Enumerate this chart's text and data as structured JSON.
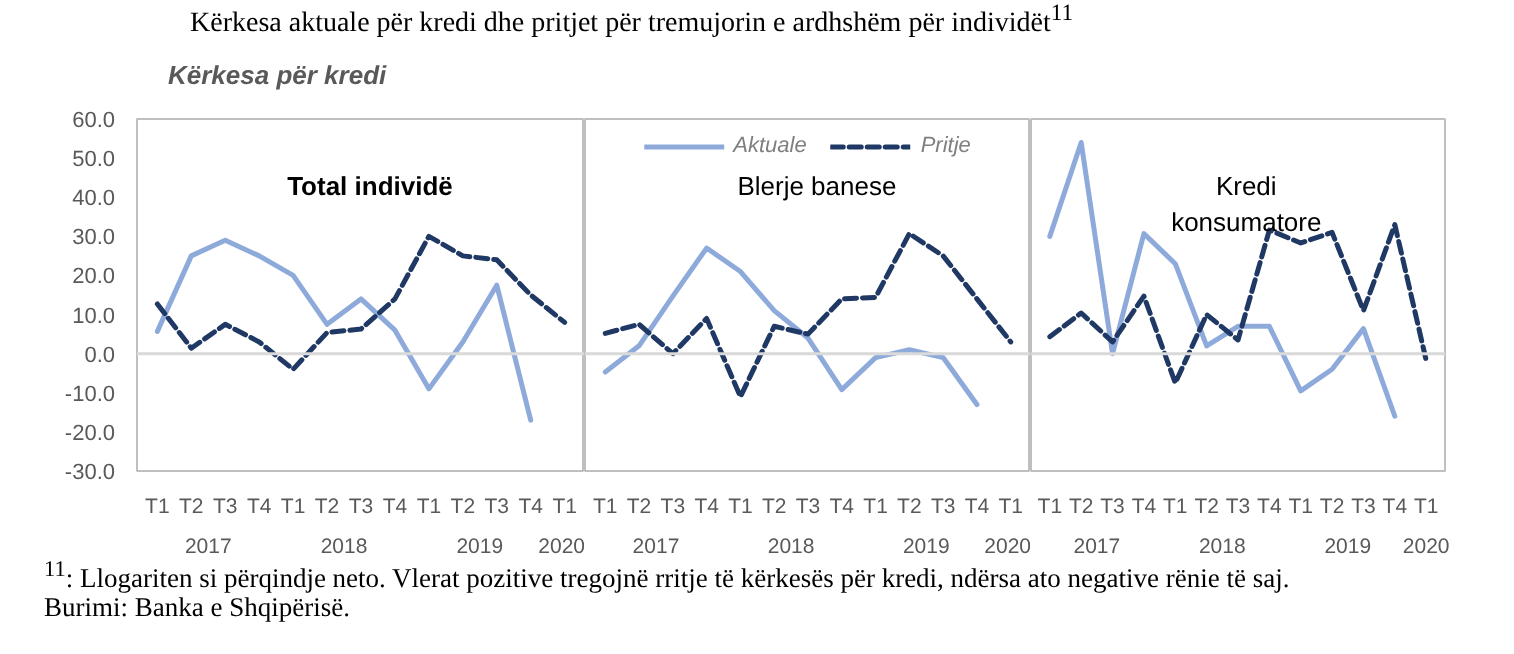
{
  "chart_data": [
    {
      "type": "line",
      "title": "Total individë",
      "subtitle": "Kërkesa për kredi",
      "annotations": [
        "2017",
        "2018",
        "2019",
        "2020",
        "Kërkesa aktuale për kredi dhe pritjet për tremujorin e ardhshëm për individët$^{11}$",
        "$^{11}$: Llogariten si përqindje neto. Vlerat pozitive tregojnë rritje të kërkesës për kredi, ndërsa ato negative rënie të saj.",
        "Burimi: Banka e Shqipërisë."
      ],
      "categories": [
        "T1",
        "T2",
        "T3",
        "T4",
        "T1",
        "T2",
        "T3",
        "T4",
        "T1",
        "T2",
        "T3",
        "T4",
        "T1"
      ],
      "series": [
        {
          "color": "#8eaadb",
          "line_style": "solid",
          "values": [
            5.7,
            25,
            29,
            25,
            20,
            7.5,
            14,
            6,
            -9,
            3,
            17.5,
            -17,
            null
          ]
        },
        {
          "color": "#1f3864",
          "line_style": "dashed",
          "values": [
            12.7,
            1.4,
            7.5,
            3,
            -4,
            5.4,
            6.3,
            14,
            30,
            25,
            24,
            15,
            8
          ]
        }
      ],
      "ylim": [
        -30,
        60
      ],
      "yticks": [
        {
          "value": -30,
          "label": "-30.0"
        },
        {
          "value": -20,
          "label": "-20.0"
        },
        {
          "value": -10,
          "label": "-10.0"
        },
        {
          "value": 0,
          "label": "0.0"
        },
        {
          "value": 10,
          "label": "10.0"
        },
        {
          "value": 20,
          "label": "20.0"
        },
        {
          "value": 30,
          "label": "30.0"
        },
        {
          "value": 40,
          "label": "40.0"
        },
        {
          "value": 50,
          "label": "50.0"
        },
        {
          "value": 60,
          "label": "60.0"
        }
      ],
      "ref_lines": [
        {
          "axis": "y",
          "value": 0,
          "color": "#d9d9d9"
        }
      ],
      "grid": false,
      "legend": false
    },
    {
      "type": "line",
      "title": "Blerje banese",
      "annotations": [
        "2017",
        "2018",
        "2019",
        "2020"
      ],
      "categories": [
        "T1",
        "T2",
        "T3",
        "T4",
        "T1",
        "T2",
        "T3",
        "T4",
        "T1",
        "T2",
        "T3",
        "T4",
        "T1"
      ],
      "series": [
        {
          "name": "Aktuale",
          "color": "#8eaadb",
          "line_style": "solid",
          "values": [
            -4.7,
            2,
            14.7,
            27,
            21,
            11,
            4,
            -9.2,
            -1,
            1,
            -1,
            -13,
            null
          ]
        },
        {
          "name": "Pritje",
          "color": "#1f3864",
          "line_style": "dashed",
          "values": [
            5.2,
            7.5,
            0,
            9,
            -11,
            7,
            5,
            14,
            14.4,
            30.7,
            25,
            14,
            3
          ]
        }
      ],
      "ylim": [
        -30,
        60
      ],
      "ref_lines": [
        {
          "axis": "y",
          "value": 0,
          "color": "#d9d9d9"
        }
      ],
      "grid": false,
      "legend": "top",
      "tick_labels": "x"
    },
    {
      "type": "line",
      "title": "Kredi\nkonsumatore",
      "annotations": [
        "2017",
        "2018",
        "2019",
        "2020"
      ],
      "categories": [
        "T1",
        "T2",
        "T3",
        "T4",
        "T1",
        "T2",
        "T3",
        "T4",
        "T1",
        "T2",
        "T3",
        "T4",
        "T1"
      ],
      "series": [
        {
          "color": "#8eaadb",
          "line_style": "solid",
          "values": [
            30,
            54,
            0,
            30.7,
            23,
            2,
            7,
            7,
            -9.5,
            -4,
            6.4,
            -16,
            null
          ]
        },
        {
          "color": "#1f3864",
          "line_style": "dashed",
          "values": [
            4.3,
            10.4,
            3,
            14.7,
            -7.5,
            10,
            3.5,
            31.6,
            28.3,
            31,
            11,
            33,
            -1.7
          ]
        }
      ],
      "ylim": [
        -30,
        60
      ],
      "ref_lines": [
        {
          "axis": "y",
          "value": 0,
          "color": "#d9d9d9"
        }
      ],
      "grid": false,
      "legend": false,
      "tick_labels": "x"
    }
  ]
}
